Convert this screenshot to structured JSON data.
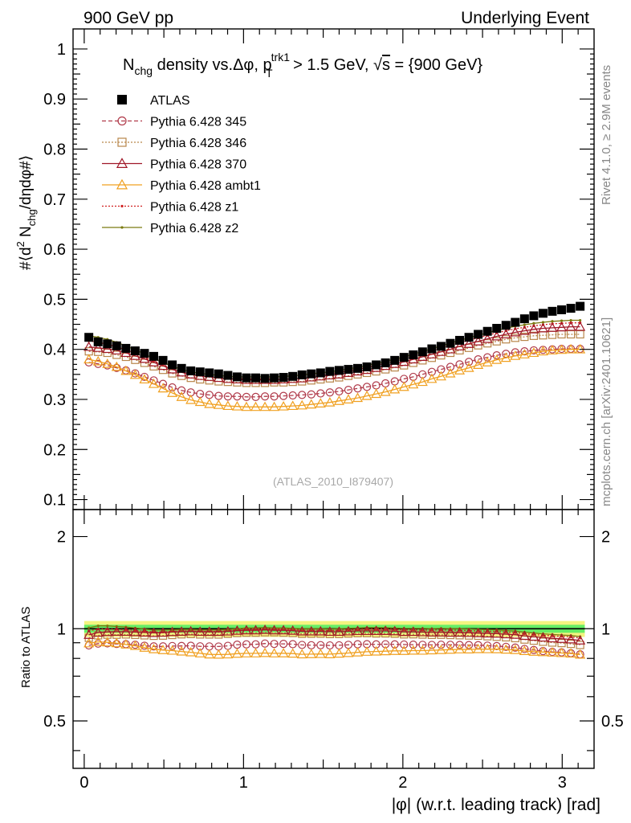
{
  "header": {
    "left": "900 GeV pp",
    "right": "Underlying Event"
  },
  "side_labels": {
    "rivet": "Rivet 4.1.0, ≥ 2.9M events",
    "mcplots": "mcplots.cern.ch [arXiv:2401.10621]"
  },
  "watermark": "(ATLAS_2010_I879407)",
  "colors": {
    "ATLAS": "#000000",
    "p345": "#b03a4a",
    "p346": "#b8864a",
    "p370": "#a01828",
    "ambt1": "#f0a020",
    "z1": "#d02020",
    "z2": "#7a7a10",
    "band_inner": "#66ee66",
    "band_outer": "#f4f480"
  },
  "chart_data": [
    {
      "type": "scatter",
      "panel": "main",
      "title_parts": {
        "a": "N",
        "a_sub": "chg",
        "b": " density vs.Δφ, p",
        "b_sup": "trk1",
        "b_sub": "T",
        "c": " > 1.5 GeV, ",
        "sqrt": "√",
        "s": "s",
        "d": " = {900 GeV}"
      },
      "ylabel_parts": {
        "a": "#⟨d",
        "sup2": "2",
        "b": " N",
        "sub": "chg",
        "c": "/dηdφ#⟩"
      },
      "ylim": [
        0.08,
        1.04
      ],
      "yticks": [
        "0.1",
        "0.2",
        "0.3",
        "0.4",
        "0.5",
        "0.6",
        "0.7",
        "0.8",
        "0.9",
        "1"
      ],
      "xlim": [
        -0.07,
        3.2
      ],
      "series": [
        {
          "name": "ATLAS",
          "marker": "square-filled",
          "values": [
            0.424,
            0.415,
            0.411,
            0.407,
            0.402,
            0.397,
            0.392,
            0.386,
            0.378,
            0.369,
            0.362,
            0.357,
            0.355,
            0.353,
            0.351,
            0.348,
            0.345,
            0.343,
            0.343,
            0.342,
            0.343,
            0.344,
            0.346,
            0.349,
            0.351,
            0.353,
            0.356,
            0.358,
            0.36,
            0.362,
            0.365,
            0.369,
            0.373,
            0.378,
            0.384,
            0.389,
            0.395,
            0.401,
            0.406,
            0.412,
            0.418,
            0.424,
            0.43,
            0.436,
            0.442,
            0.448,
            0.454,
            0.461,
            0.467,
            0.472,
            0.476,
            0.479,
            0.482,
            0.486
          ]
        },
        {
          "name": "Pythia 6.428 345",
          "marker": "circle-open",
          "line": "dashed",
          "values": [
            0.374,
            0.371,
            0.368,
            0.363,
            0.358,
            0.352,
            0.345,
            0.338,
            0.331,
            0.324,
            0.318,
            0.314,
            0.311,
            0.309,
            0.307,
            0.306,
            0.306,
            0.305,
            0.305,
            0.306,
            0.306,
            0.307,
            0.308,
            0.309,
            0.31,
            0.312,
            0.314,
            0.316,
            0.319,
            0.322,
            0.325,
            0.328,
            0.332,
            0.336,
            0.341,
            0.345,
            0.35,
            0.355,
            0.36,
            0.365,
            0.37,
            0.375,
            0.38,
            0.384,
            0.388,
            0.391,
            0.394,
            0.396,
            0.398,
            0.399,
            0.4,
            0.401,
            0.401,
            0.401
          ]
        },
        {
          "name": "Pythia 6.428 346",
          "marker": "square-open",
          "line": "dotted",
          "values": [
            0.396,
            0.395,
            0.393,
            0.389,
            0.385,
            0.379,
            0.373,
            0.366,
            0.359,
            0.352,
            0.347,
            0.343,
            0.34,
            0.338,
            0.336,
            0.335,
            0.334,
            0.333,
            0.333,
            0.333,
            0.334,
            0.334,
            0.335,
            0.336,
            0.338,
            0.34,
            0.342,
            0.344,
            0.347,
            0.35,
            0.353,
            0.356,
            0.36,
            0.364,
            0.368,
            0.373,
            0.378,
            0.383,
            0.388,
            0.393,
            0.398,
            0.403,
            0.408,
            0.412,
            0.416,
            0.42,
            0.423,
            0.425,
            0.427,
            0.428,
            0.429,
            0.43,
            0.43,
            0.43
          ]
        },
        {
          "name": "Pythia 6.428 370",
          "marker": "triangle-open",
          "line": "solid",
          "values": [
            0.405,
            0.403,
            0.401,
            0.398,
            0.393,
            0.387,
            0.381,
            0.374,
            0.367,
            0.36,
            0.354,
            0.35,
            0.347,
            0.345,
            0.343,
            0.341,
            0.34,
            0.339,
            0.339,
            0.339,
            0.339,
            0.34,
            0.341,
            0.342,
            0.344,
            0.346,
            0.348,
            0.35,
            0.353,
            0.356,
            0.359,
            0.363,
            0.367,
            0.371,
            0.375,
            0.38,
            0.385,
            0.39,
            0.395,
            0.4,
            0.406,
            0.411,
            0.416,
            0.421,
            0.426,
            0.43,
            0.434,
            0.437,
            0.44,
            0.442,
            0.443,
            0.444,
            0.445,
            0.445
          ]
        },
        {
          "name": "Pythia 6.428 ambt1",
          "marker": "triangle-open",
          "line": "solid",
          "values": [
            0.38,
            0.376,
            0.371,
            0.365,
            0.357,
            0.349,
            0.34,
            0.331,
            0.322,
            0.313,
            0.305,
            0.299,
            0.295,
            0.291,
            0.289,
            0.287,
            0.286,
            0.285,
            0.285,
            0.285,
            0.285,
            0.286,
            0.287,
            0.288,
            0.29,
            0.292,
            0.294,
            0.297,
            0.3,
            0.303,
            0.307,
            0.311,
            0.315,
            0.32,
            0.325,
            0.33,
            0.335,
            0.341,
            0.346,
            0.352,
            0.358,
            0.363,
            0.369,
            0.374,
            0.379,
            0.383,
            0.387,
            0.39,
            0.393,
            0.396,
            0.398,
            0.399,
            0.4,
            0.4
          ]
        },
        {
          "name": "Pythia 6.428 z1",
          "marker": "dot",
          "line": "dotted",
          "values": [
            0.417,
            0.414,
            0.41,
            0.405,
            0.399,
            0.392,
            0.385,
            0.377,
            0.369,
            0.362,
            0.356,
            0.351,
            0.348,
            0.346,
            0.344,
            0.343,
            0.342,
            0.341,
            0.341,
            0.341,
            0.342,
            0.343,
            0.344,
            0.345,
            0.347,
            0.349,
            0.351,
            0.354,
            0.357,
            0.36,
            0.364,
            0.368,
            0.372,
            0.376,
            0.381,
            0.386,
            0.391,
            0.397,
            0.402,
            0.408,
            0.413,
            0.418,
            0.423,
            0.428,
            0.433,
            0.437,
            0.441,
            0.444,
            0.447,
            0.449,
            0.451,
            0.452,
            0.453,
            0.453
          ]
        },
        {
          "name": "Pythia 6.428 z2",
          "marker": "dot",
          "line": "solid",
          "values": [
            0.427,
            0.424,
            0.42,
            0.414,
            0.407,
            0.399,
            0.391,
            0.382,
            0.374,
            0.366,
            0.36,
            0.355,
            0.352,
            0.35,
            0.348,
            0.346,
            0.345,
            0.345,
            0.345,
            0.345,
            0.345,
            0.346,
            0.347,
            0.349,
            0.351,
            0.353,
            0.355,
            0.358,
            0.361,
            0.364,
            0.368,
            0.372,
            0.376,
            0.38,
            0.385,
            0.39,
            0.396,
            0.401,
            0.407,
            0.412,
            0.418,
            0.423,
            0.428,
            0.433,
            0.438,
            0.442,
            0.446,
            0.449,
            0.452,
            0.454,
            0.456,
            0.457,
            0.458,
            0.458
          ]
        }
      ]
    },
    {
      "type": "scatter",
      "panel": "ratio",
      "ylabel": "Ratio to ATLAS",
      "ylim": [
        0.35,
        2.45
      ],
      "yticks": [
        "0.5",
        "1",
        "2"
      ],
      "xlabel": "|φ| (w.r.t. leading track) [rad]",
      "xticks": [
        "0",
        "1",
        "2",
        "3"
      ],
      "xlim": [
        -0.07,
        3.2
      ],
      "band_inner": [
        0.97,
        1.03
      ],
      "band_outer": [
        0.94,
        1.06
      ]
    }
  ]
}
